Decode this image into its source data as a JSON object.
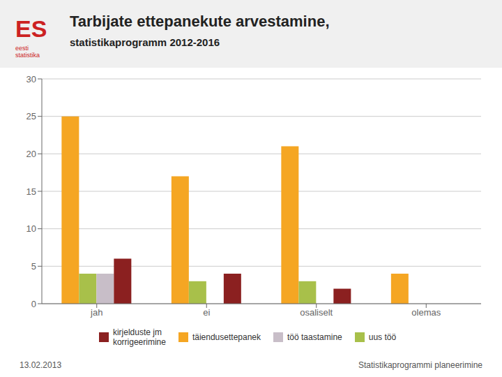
{
  "chart_data": {
    "type": "bar",
    "title": "Tarbijate ettepanekute arvestamine,",
    "subtitle": "statistikaprogramm 2012-2016",
    "categories": [
      "jah",
      "ei",
      "osaliselt",
      "olemas"
    ],
    "series": [
      {
        "name": "täiendusettepanek",
        "color": "#F5A623",
        "values": [
          25,
          17,
          21,
          4
        ]
      },
      {
        "name": "uus töö",
        "color": "#A8C04A",
        "values": [
          4,
          3,
          3,
          0
        ]
      },
      {
        "name": "töö taastamine",
        "color": "#C8BEC8",
        "values": [
          4,
          0,
          0,
          0
        ]
      },
      {
        "name": "kirjelduste jm\nkorrigeerimine",
        "color": "#8B2020",
        "values": [
          6,
          4,
          2,
          0
        ]
      }
    ],
    "ylim": [
      0,
      30
    ],
    "yticks": [
      0,
      5,
      10,
      15,
      20,
      25,
      30
    ],
    "grid": true,
    "legend": "bottom",
    "annotations": [
      "ES",
      "eesti\nstatistika",
      "13.02.2013",
      "Statistikaprogrammi planeerimine"
    ]
  }
}
